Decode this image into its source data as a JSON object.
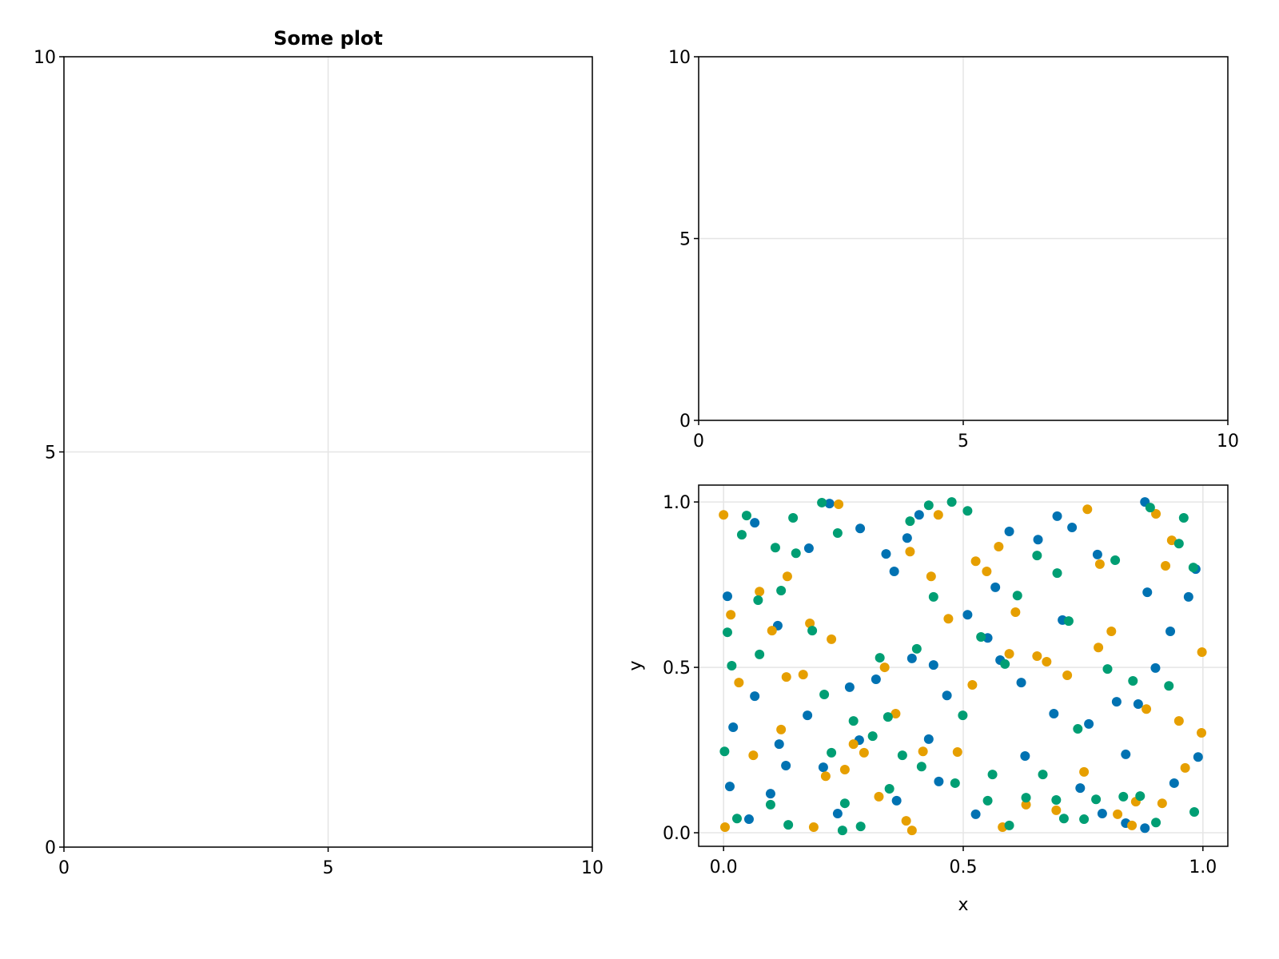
{
  "chart_data": [
    {
      "type": "scatter",
      "title": "Some plot",
      "xlim": [
        0,
        10
      ],
      "ylim": [
        0,
        10
      ],
      "xticks": [
        0,
        5,
        10
      ],
      "yticks": [
        0,
        5,
        10
      ],
      "grid": true
    },
    {
      "type": "scatter",
      "xlim": [
        0,
        10
      ],
      "ylim": [
        0,
        10
      ],
      "xticks": [
        0,
        5,
        10
      ],
      "yticks": [
        0,
        5,
        10
      ],
      "grid": true
    },
    {
      "type": "scatter",
      "x_label": "x",
      "y_label": "y",
      "xlim": [
        -0.052,
        1.052
      ],
      "ylim": [
        -0.041,
        1.051
      ],
      "xticks": [
        {
          "value": 0,
          "label": "0.0"
        },
        {
          "value": 0.5,
          "label": "0.5"
        },
        {
          "value": 1,
          "label": "1.0"
        }
      ],
      "yticks": [
        {
          "value": 0,
          "label": "0.0"
        },
        {
          "value": 0.5,
          "label": "0.5"
        },
        {
          "value": 1,
          "label": "1.0"
        }
      ],
      "grid": true,
      "series": [
        {
          "color": "#0072b2",
          "x": [
            0.053,
            0.013,
            0.02,
            0.008,
            0.065,
            0.065,
            0.098,
            0.113,
            0.116,
            0.13,
            0.175,
            0.178,
            0.221,
            0.208,
            0.238,
            0.263,
            0.283,
            0.285,
            0.318,
            0.339,
            0.356,
            0.361,
            0.383,
            0.393,
            0.408,
            0.428,
            0.438,
            0.449,
            0.466,
            0.509,
            0.526,
            0.551,
            0.567,
            0.577,
            0.596,
            0.621,
            0.629,
            0.656,
            0.689,
            0.696,
            0.707,
            0.727,
            0.744,
            0.762,
            0.78,
            0.79,
            0.82,
            0.839,
            0.865,
            0.879,
            0.884,
            0.901,
            0.932,
            0.94,
            0.97,
            0.99,
            0.985,
            0.879,
            0.839
          ],
          "y": [
            0.041,
            0.14,
            0.319,
            0.715,
            0.937,
            0.413,
            0.118,
            0.626,
            0.268,
            0.203,
            0.355,
            0.86,
            0.995,
            0.198,
            0.058,
            0.44,
            0.28,
            0.92,
            0.464,
            0.843,
            0.79,
            0.097,
            0.891,
            0.527,
            0.961,
            0.283,
            0.507,
            0.155,
            0.415,
            0.659,
            0.056,
            0.589,
            0.742,
            0.522,
            0.911,
            0.454,
            0.232,
            0.886,
            0.36,
            0.957,
            0.643,
            0.923,
            0.135,
            0.329,
            0.841,
            0.058,
            0.396,
            0.237,
            0.389,
            1.0,
            0.727,
            0.498,
            0.609,
            0.15,
            0.713,
            0.229,
            0.797,
            0.014,
            0.029
          ]
        },
        {
          "color": "#e69f00",
          "x": [
            0.0,
            0.003,
            0.015,
            0.032,
            0.062,
            0.075,
            0.101,
            0.12,
            0.131,
            0.133,
            0.166,
            0.18,
            0.188,
            0.213,
            0.225,
            0.24,
            0.253,
            0.271,
            0.293,
            0.324,
            0.336,
            0.359,
            0.381,
            0.393,
            0.389,
            0.416,
            0.433,
            0.448,
            0.469,
            0.488,
            0.519,
            0.526,
            0.549,
            0.574,
            0.582,
            0.596,
            0.609,
            0.631,
            0.654,
            0.674,
            0.694,
            0.717,
            0.752,
            0.759,
            0.785,
            0.809,
            0.822,
            0.852,
            0.86,
            0.882,
            0.902,
            0.922,
            0.935,
            0.95,
            0.963,
            0.998,
            0.997,
            0.915,
            0.782
          ],
          "y": [
            0.961,
            0.017,
            0.659,
            0.454,
            0.234,
            0.729,
            0.611,
            0.312,
            0.471,
            0.775,
            0.478,
            0.633,
            0.017,
            0.171,
            0.585,
            0.993,
            0.191,
            0.268,
            0.242,
            0.109,
            0.5,
            0.36,
            0.036,
            0.007,
            0.85,
            0.246,
            0.775,
            0.961,
            0.647,
            0.244,
            0.447,
            0.821,
            0.79,
            0.865,
            0.017,
            0.541,
            0.667,
            0.085,
            0.534,
            0.517,
            0.068,
            0.476,
            0.184,
            0.978,
            0.812,
            0.609,
            0.056,
            0.022,
            0.094,
            0.374,
            0.964,
            0.807,
            0.884,
            0.338,
            0.196,
            0.546,
            0.302,
            0.089,
            0.56
          ]
        },
        {
          "color": "#009e73",
          "x": [
            0.002,
            0.008,
            0.017,
            0.028,
            0.038,
            0.048,
            0.072,
            0.075,
            0.098,
            0.108,
            0.12,
            0.135,
            0.145,
            0.151,
            0.185,
            0.205,
            0.21,
            0.225,
            0.238,
            0.248,
            0.253,
            0.271,
            0.286,
            0.311,
            0.326,
            0.343,
            0.346,
            0.373,
            0.389,
            0.403,
            0.413,
            0.428,
            0.438,
            0.476,
            0.483,
            0.499,
            0.509,
            0.537,
            0.551,
            0.561,
            0.587,
            0.596,
            0.613,
            0.631,
            0.654,
            0.666,
            0.694,
            0.696,
            0.71,
            0.72,
            0.739,
            0.752,
            0.777,
            0.801,
            0.817,
            0.834,
            0.854,
            0.869,
            0.89,
            0.902,
            0.929,
            0.95,
            0.96,
            0.98,
            0.982
          ],
          "y": [
            0.246,
            0.606,
            0.505,
            0.043,
            0.901,
            0.959,
            0.703,
            0.539,
            0.085,
            0.862,
            0.732,
            0.024,
            0.952,
            0.845,
            0.611,
            0.998,
            0.418,
            0.242,
            0.906,
            0.007,
            0.089,
            0.338,
            0.019,
            0.292,
            0.529,
            0.35,
            0.133,
            0.234,
            0.942,
            0.556,
            0.2,
            0.99,
            0.713,
            1.0,
            0.15,
            0.355,
            0.973,
            0.592,
            0.097,
            0.176,
            0.51,
            0.022,
            0.717,
            0.106,
            0.838,
            0.176,
            0.099,
            0.785,
            0.043,
            0.64,
            0.314,
            0.041,
            0.101,
            0.495,
            0.824,
            0.109,
            0.459,
            0.111,
            0.983,
            0.031,
            0.444,
            0.874,
            0.952,
            0.802,
            0.063
          ]
        }
      ]
    }
  ]
}
